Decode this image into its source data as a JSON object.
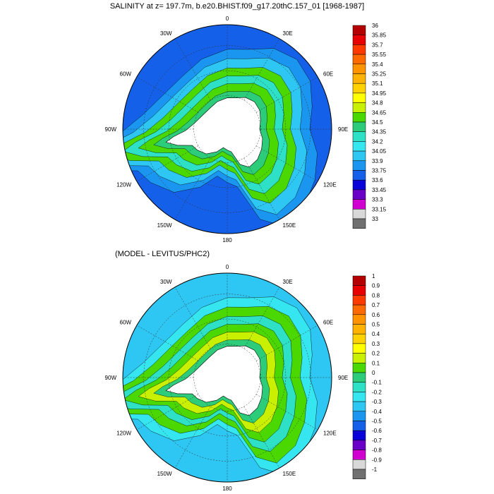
{
  "top_panel": {
    "title": "SALINITY at z= 197.7m, b.e20.BHIST.f09_g17.20thC.157_01 [1968-1987]",
    "colorbar_labels": [
      "36",
      "35.85",
      "35.7",
      "35.55",
      "35.4",
      "35.25",
      "35.1",
      "34.95",
      "34.8",
      "34.65",
      "34.5",
      "34.35",
      "34.2",
      "34.05",
      "33.9",
      "33.75",
      "33.6",
      "33.45",
      "33.3",
      "33.15",
      "33"
    ],
    "colorbar_colors": [
      "#b40000",
      "#e60000",
      "#ff3a00",
      "#ff6a00",
      "#ff9300",
      "#ffb300",
      "#ffd200",
      "#ffff00",
      "#c8f000",
      "#4bd800",
      "#2ccc7a",
      "#2de0c6",
      "#35e6f0",
      "#2ec6f2",
      "#1b96f0",
      "#1560e8",
      "#0a00d8",
      "#6a00c8",
      "#d000d0",
      "#d8d8d8",
      "#707070"
    ]
  },
  "bottom_panel": {
    "title": "(MODEL - LEVITUS/PHC2)",
    "colorbar_labels": [
      "1",
      "0.9",
      "0.8",
      "0.7",
      "0.6",
      "0.5",
      "0.4",
      "0.3",
      "0.2",
      "0.1",
      "0",
      "-0.1",
      "-0.2",
      "-0.3",
      "-0.4",
      "-0.5",
      "-0.6",
      "-0.7",
      "-0.8",
      "-0.9",
      "-1"
    ],
    "colorbar_colors": [
      "#b40000",
      "#e60000",
      "#ff3a00",
      "#ff6a00",
      "#ff9300",
      "#ffb300",
      "#ffd200",
      "#ffff00",
      "#c8f000",
      "#4bd800",
      "#2ccc7a",
      "#2de0c6",
      "#35e6f0",
      "#2ec6f2",
      "#1b96f0",
      "#1560e8",
      "#0a00d8",
      "#6a00c8",
      "#d000d0",
      "#d8d8d8",
      "#707070"
    ]
  },
  "longitude_labels": {
    "lon_0": "0",
    "lon_30e": "30E",
    "lon_60e": "60E",
    "lon_90e": "90E",
    "lon_120e": "120E",
    "lon_150e": "150E",
    "lon_180": "180",
    "lon_150w": "150W",
    "lon_120w": "120W",
    "lon_90w": "90W",
    "lon_60w": "60W",
    "lon_30w": "30W"
  },
  "land_color": "#ffffff",
  "ocean_edge_color": "#1a3ad8",
  "ocean_core_color": "#2bd2b6"
}
